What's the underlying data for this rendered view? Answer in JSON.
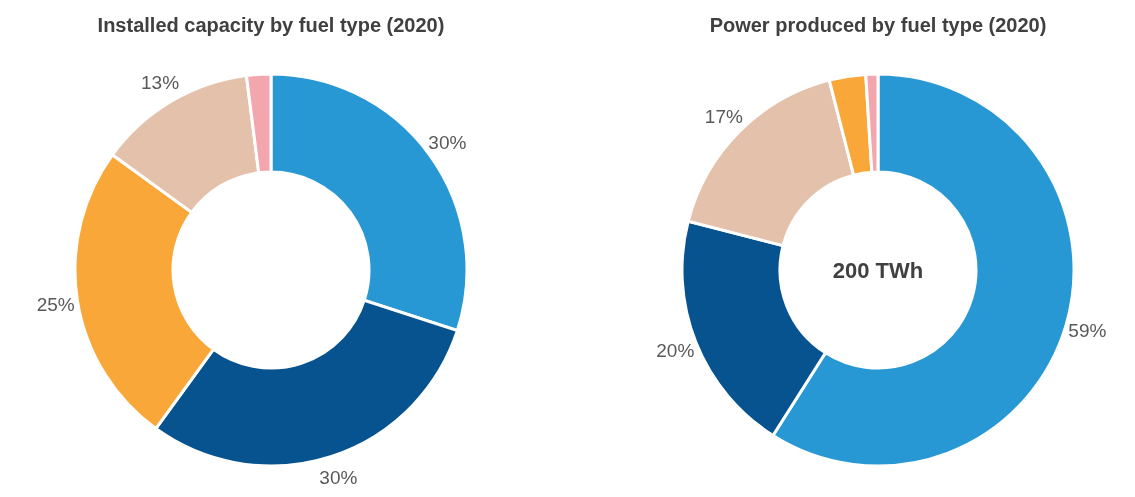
{
  "chart_data": [
    {
      "type": "donut",
      "title": "Installed capacity by fuel type (2020)",
      "categories": [
        null,
        null,
        null,
        null,
        null
      ],
      "values": [
        30,
        30,
        25,
        13,
        2
      ],
      "colors": [
        "#2898d5",
        "#06538f",
        "#f8a738",
        "#e4c1ab",
        "#f4a6ae"
      ],
      "value_labels": [
        "30%",
        "30%",
        "25%",
        "13%",
        null
      ]
    },
    {
      "type": "donut",
      "title": "Power produced by fuel type (2020)",
      "categories": [
        null,
        null,
        null,
        null,
        null
      ],
      "values": [
        59,
        20,
        17,
        3,
        1
      ],
      "colors": [
        "#2898d5",
        "#06538f",
        "#e4c1ab",
        "#f8a738",
        "#f4a6ae"
      ],
      "value_labels": [
        "59%",
        "20%",
        "17%",
        null,
        null
      ],
      "annotations": [
        "200 TWh"
      ]
    }
  ]
}
